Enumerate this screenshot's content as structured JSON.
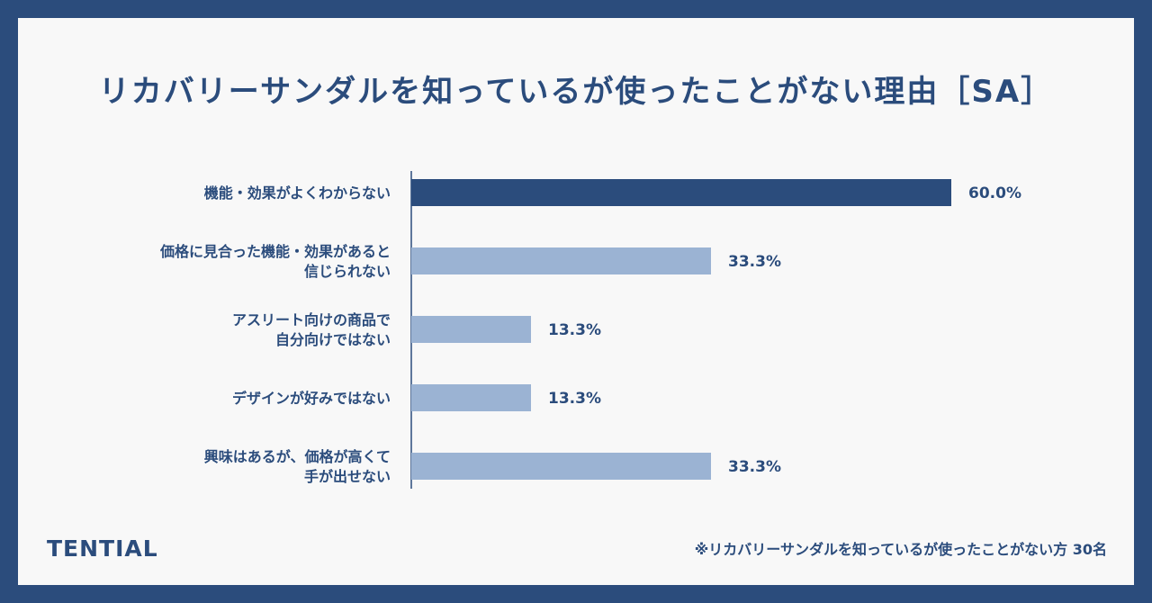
{
  "colors": {
    "frame": "#2b4c7c",
    "background": "#f8f8f8",
    "text": "#2b4c7c",
    "bar_primary": "#2b4c7c",
    "bar_secondary": "#9bb3d3"
  },
  "brand": "TENTIAL",
  "footnote": "※リカバリーサンダルを知っているが使ったことがない方 30名",
  "chart_data": {
    "type": "bar",
    "orientation": "horizontal",
    "title": "リカバリーサンダルを知っているが使ったことがない理由［SA］",
    "categories": [
      [
        "機能・効果がよくわからない"
      ],
      [
        "価格に見合った機能・効果があると",
        "信じられない"
      ],
      [
        "アスリート向けの商品で",
        "自分向けではない"
      ],
      [
        "デザインが好みではない"
      ],
      [
        "興味はあるが、価格が高くて",
        "手が出せない"
      ]
    ],
    "values": [
      60.0,
      33.3,
      13.3,
      13.3,
      33.3
    ],
    "value_labels": [
      "60.0%",
      "33.3%",
      "13.3%",
      "13.3%",
      "33.3%"
    ],
    "unit": "%",
    "xlim": [
      0,
      60
    ],
    "grid": false,
    "legend": "none",
    "highlight_index": 0
  }
}
